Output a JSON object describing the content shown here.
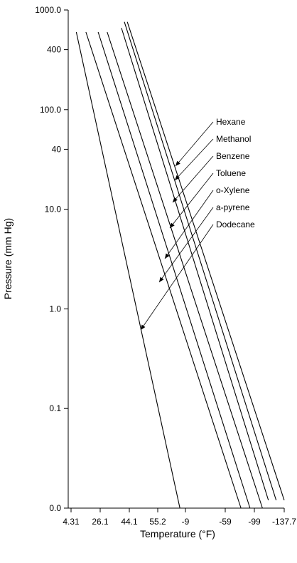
{
  "chart_data": {
    "type": "line",
    "title": "",
    "xlabel": "Temperature (°F)",
    "ylabel": "Pressure (mm Hg)",
    "y_scale": "log",
    "grid": false,
    "x_ticks": [
      "4.31",
      "26.1",
      "44.1",
      "55.2",
      "-9",
      "-59",
      "-99",
      "-137.7"
    ],
    "y_ticks": [
      {
        "label": "1000.0",
        "value": 1000
      },
      {
        "label": "400",
        "value": 400
      },
      {
        "label": "100.0",
        "value": 100
      },
      {
        "label": "40",
        "value": 40
      },
      {
        "label": "10.0",
        "value": 10
      },
      {
        "label": "1.0",
        "value": 1
      },
      {
        "label": "0.1",
        "value": 0.1
      },
      {
        "label": "0.0",
        "value": 0.01
      }
    ],
    "series": [
      {
        "name": "Hexane",
        "points": [
          {
            "x_tick_pos": 1.93,
            "y": 760
          },
          {
            "x_tick_pos": 7.0,
            "y": 0.012
          }
        ]
      },
      {
        "name": "Methanol",
        "points": [
          {
            "x_tick_pos": 1.83,
            "y": 760
          },
          {
            "x_tick_pos": 6.73,
            "y": 0.012
          }
        ]
      },
      {
        "name": "Benzene",
        "points": [
          {
            "x_tick_pos": 1.73,
            "y": 660
          },
          {
            "x_tick_pos": 6.47,
            "y": 0.012
          }
        ]
      },
      {
        "name": "Toluene",
        "points": [
          {
            "x_tick_pos": 1.24,
            "y": 600
          },
          {
            "x_tick_pos": 6.27,
            "y": 0.01
          }
        ]
      },
      {
        "name": "o-Xylene",
        "points": [
          {
            "x_tick_pos": 0.93,
            "y": 600
          },
          {
            "x_tick_pos": 5.85,
            "y": 0.01
          }
        ]
      },
      {
        "name": "a-pyrene",
        "points": [
          {
            "x_tick_pos": 0.51,
            "y": 600
          },
          {
            "x_tick_pos": 5.54,
            "y": 0.01
          }
        ]
      },
      {
        "name": "Dodecane",
        "points": [
          {
            "x_tick_pos": 0.18,
            "y": 600
          },
          {
            "x_tick_pos": 3.8,
            "y": 0.01
          }
        ]
      }
    ]
  }
}
